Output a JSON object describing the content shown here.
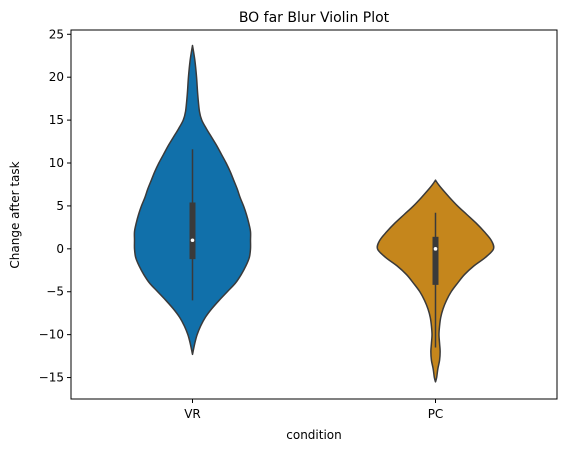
{
  "chart_data": {
    "type": "violin",
    "title": "BO far Blur Violin Plot",
    "xlabel": "condition",
    "ylabel": "Change after task",
    "ylim": [
      -17.5,
      25.5
    ],
    "yticks": [
      -15,
      -10,
      -5,
      0,
      5,
      10,
      15,
      20,
      25
    ],
    "ytick_labels": [
      "−15",
      "−10",
      "−5",
      "0",
      "5",
      "10",
      "15",
      "20",
      "25"
    ],
    "grid": false,
    "legend": "none",
    "categories": [
      "VR",
      "PC"
    ],
    "series": [
      {
        "category": "VR",
        "color": "#1170aa",
        "min": -12.3,
        "max": 23.7,
        "whisker_low": -6,
        "whisker_high": 11.6,
        "q1": -1.2,
        "q3": 5.4,
        "median": 1,
        "density": [
          [
            23.7,
            0.0
          ],
          [
            22,
            0.04
          ],
          [
            20,
            0.07
          ],
          [
            18,
            0.09
          ],
          [
            16,
            0.12
          ],
          [
            15,
            0.16
          ],
          [
            14,
            0.24
          ],
          [
            13,
            0.33
          ],
          [
            12,
            0.42
          ],
          [
            11,
            0.5
          ],
          [
            10,
            0.58
          ],
          [
            9,
            0.65
          ],
          [
            8,
            0.71
          ],
          [
            7,
            0.77
          ],
          [
            6,
            0.82
          ],
          [
            5,
            0.88
          ],
          [
            4,
            0.93
          ],
          [
            3,
            0.97
          ],
          [
            2,
            1.0
          ],
          [
            1,
            1.0
          ],
          [
            0,
            1.0
          ],
          [
            -1,
            0.98
          ],
          [
            -2,
            0.92
          ],
          [
            -3,
            0.84
          ],
          [
            -4,
            0.74
          ],
          [
            -5,
            0.6
          ],
          [
            -6,
            0.46
          ],
          [
            -7,
            0.33
          ],
          [
            -8,
            0.22
          ],
          [
            -9,
            0.14
          ],
          [
            -10,
            0.08
          ],
          [
            -11,
            0.04
          ],
          [
            -12.3,
            0.0
          ]
        ]
      },
      {
        "category": "PC",
        "color": "#c5861c",
        "min": -15.5,
        "max": 8,
        "whisker_low": -11.5,
        "whisker_high": 4.2,
        "q1": -4.2,
        "q3": 1.4,
        "median": 0,
        "density": [
          [
            8,
            0.0
          ],
          [
            7.5,
            0.05
          ],
          [
            7,
            0.11
          ],
          [
            6,
            0.24
          ],
          [
            5,
            0.38
          ],
          [
            4,
            0.54
          ],
          [
            3,
            0.7
          ],
          [
            2,
            0.84
          ],
          [
            1,
            0.96
          ],
          [
            0,
            1.0
          ],
          [
            -1,
            0.86
          ],
          [
            -2,
            0.66
          ],
          [
            -3,
            0.5
          ],
          [
            -4,
            0.38
          ],
          [
            -5,
            0.27
          ],
          [
            -6,
            0.19
          ],
          [
            -7,
            0.13
          ],
          [
            -8,
            0.09
          ],
          [
            -9,
            0.07
          ],
          [
            -10,
            0.06
          ],
          [
            -11,
            0.07
          ],
          [
            -12,
            0.08
          ],
          [
            -13,
            0.07
          ],
          [
            -14,
            0.04
          ],
          [
            -15,
            0.02
          ],
          [
            -15.5,
            0.0
          ]
        ]
      }
    ]
  }
}
